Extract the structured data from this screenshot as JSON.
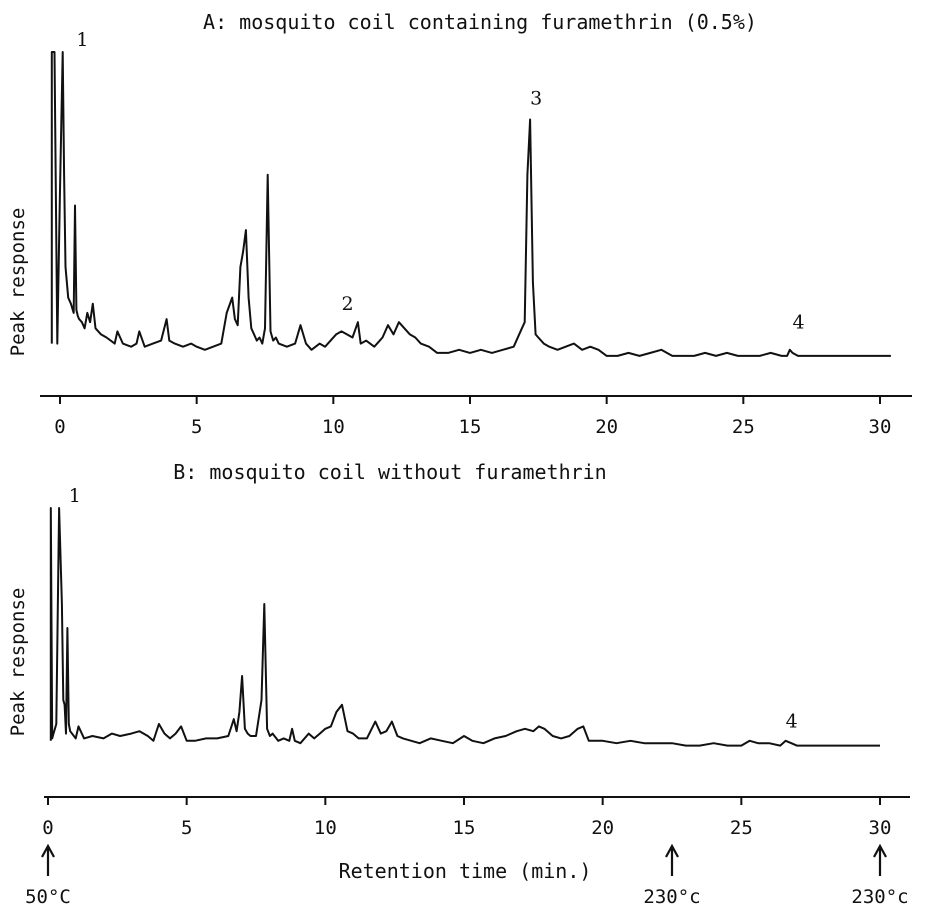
{
  "chart_data": [
    {
      "type": "line",
      "title": "A: mosquito coil containing furamethrin (0.5%)",
      "xlabel": "",
      "ylabel": "Peak response",
      "xlim": [
        0,
        30
      ],
      "x_ticks": [
        "0",
        "5",
        "10",
        "15",
        "20",
        "25",
        "30"
      ],
      "grid": false,
      "line_color": "#111111",
      "series": [
        {
          "x": [
            -0.3,
            -0.3,
            -0.2,
            -0.1,
            0.0,
            0.1,
            0.15,
            0.2,
            0.3,
            0.4,
            0.5,
            0.55,
            0.6,
            0.65,
            0.7,
            0.8,
            0.9,
            1.0,
            1.1,
            1.2,
            1.3,
            1.5,
            1.7,
            2.0,
            2.1,
            2.3,
            2.6,
            2.8,
            2.9,
            3.1,
            3.4,
            3.7,
            3.9,
            4.0,
            4.2,
            4.5,
            4.8,
            5.0,
            5.3,
            5.6,
            5.9,
            6.1,
            6.3,
            6.4,
            6.5,
            6.6,
            6.7,
            6.8,
            6.9,
            7.0,
            7.1,
            7.2,
            7.3,
            7.4,
            7.5,
            7.6,
            7.7,
            7.8,
            7.9,
            8.0,
            8.3,
            8.6,
            8.8,
            9.0,
            9.2,
            9.5,
            9.7,
            9.9,
            10.1,
            10.3,
            10.5,
            10.7,
            10.9,
            11.0,
            11.2,
            11.5,
            11.8,
            12.0,
            12.2,
            12.4,
            12.6,
            12.8,
            13.0,
            13.2,
            13.5,
            13.8,
            14.2,
            14.6,
            15.0,
            15.4,
            15.8,
            16.2,
            16.6,
            16.9,
            17.0,
            17.1,
            17.2,
            17.3,
            17.4,
            17.5,
            17.7,
            17.9,
            18.2,
            18.5,
            18.8,
            19.1,
            19.4,
            19.7,
            20.0,
            20.4,
            20.8,
            21.2,
            21.6,
            22.0,
            22.4,
            22.8,
            23.2,
            23.6,
            24.0,
            24.4,
            24.8,
            25.2,
            25.6,
            26.0,
            26.4,
            26.6,
            26.7,
            26.8,
            27.0,
            27.4,
            27.8,
            28.2,
            28.6,
            29.0,
            29.4,
            29.8,
            30.2,
            30.4
          ],
          "values": [
            5,
            100,
            100,
            5,
            55,
            100,
            60,
            30,
            20,
            18,
            15,
            50,
            16,
            14,
            13,
            12,
            10,
            15,
            12,
            18,
            10,
            8,
            7,
            5,
            9,
            5,
            4,
            5,
            9,
            4,
            5,
            6,
            13,
            6,
            5,
            4,
            5,
            4,
            3,
            4,
            5,
            15,
            20,
            13,
            11,
            30,
            35,
            42,
            20,
            10,
            8,
            6,
            7,
            5,
            10,
            60,
            9,
            6,
            7,
            5,
            4,
            5,
            11,
            5,
            3,
            5,
            4,
            6,
            8,
            9,
            8,
            7,
            12,
            5,
            6,
            4,
            7,
            11,
            8,
            12,
            10,
            8,
            7,
            5,
            4,
            2,
            2,
            3,
            2,
            3,
            2,
            3,
            4,
            10,
            12,
            60,
            78,
            25,
            8,
            7,
            5,
            4,
            3,
            4,
            5,
            3,
            4,
            3,
            1,
            1,
            2,
            1,
            2,
            3,
            1,
            1,
            1,
            2,
            1,
            2,
            1,
            1,
            1,
            2,
            1,
            1,
            3,
            2,
            1,
            1,
            1,
            1,
            1,
            1,
            1,
            1,
            1,
            1
          ]
        }
      ],
      "annotations": [
        {
          "text": "1",
          "x": 0.6,
          "y": 100
        },
        {
          "text": "2",
          "x": 10.3,
          "y": 14
        },
        {
          "text": "3",
          "x": 17.2,
          "y": 81
        },
        {
          "text": "4",
          "x": 26.8,
          "y": 8
        }
      ]
    },
    {
      "type": "line",
      "title": "B: mosquito coil without furamethrin",
      "xlabel": "Retention time (min.)",
      "ylabel": "Peak response",
      "xlim": [
        0,
        30
      ],
      "x_ticks": [
        "0",
        "5",
        "10",
        "15",
        "20",
        "25",
        "30"
      ],
      "grid": false,
      "line_color": "#111111",
      "series": [
        {
          "x": [
            0.1,
            0.1,
            0.15,
            0.2,
            0.3,
            0.4,
            0.5,
            0.55,
            0.6,
            0.65,
            0.7,
            0.75,
            0.8,
            1.0,
            1.1,
            1.3,
            1.6,
            2.0,
            2.3,
            2.6,
            3.0,
            3.3,
            3.6,
            3.8,
            4.0,
            4.2,
            4.4,
            4.6,
            4.8,
            5.0,
            5.3,
            5.7,
            6.1,
            6.5,
            6.7,
            6.8,
            6.9,
            7.0,
            7.1,
            7.2,
            7.3,
            7.5,
            7.7,
            7.8,
            7.9,
            8.0,
            8.1,
            8.3,
            8.5,
            8.7,
            8.8,
            8.9,
            9.1,
            9.4,
            9.6,
            9.8,
            10.0,
            10.2,
            10.4,
            10.6,
            10.8,
            11.0,
            11.2,
            11.5,
            11.8,
            12.0,
            12.2,
            12.4,
            12.6,
            12.8,
            13.1,
            13.4,
            13.8,
            14.2,
            14.6,
            15.0,
            15.3,
            15.7,
            16.1,
            16.5,
            16.9,
            17.2,
            17.5,
            17.7,
            17.9,
            18.2,
            18.5,
            18.8,
            19.1,
            19.3,
            19.5,
            20.0,
            20.5,
            21.0,
            21.5,
            22.0,
            22.5,
            23.0,
            23.5,
            24.0,
            24.5,
            24.8,
            25.0,
            25.3,
            25.6,
            26.0,
            26.4,
            26.6,
            26.8,
            27.0,
            27.5,
            28.0,
            28.5,
            29.0,
            29.5,
            30.0
          ],
          "values": [
            3,
            100,
            4,
            6,
            10,
            100,
            60,
            20,
            18,
            6,
            50,
            10,
            7,
            4,
            9,
            4,
            5,
            4,
            6,
            5,
            6,
            7,
            5,
            3,
            10,
            6,
            4,
            6,
            9,
            3,
            3,
            4,
            4,
            5,
            12,
            7,
            15,
            30,
            8,
            6,
            5,
            5,
            20,
            60,
            8,
            5,
            6,
            3,
            4,
            3,
            8,
            3,
            2,
            6,
            4,
            6,
            8,
            9,
            15,
            18,
            7,
            6,
            4,
            4,
            11,
            6,
            7,
            11,
            5,
            4,
            3,
            2,
            4,
            3,
            2,
            5,
            3,
            2,
            4,
            5,
            7,
            8,
            7,
            9,
            8,
            5,
            4,
            5,
            8,
            9,
            3,
            3,
            2,
            3,
            2,
            2,
            2,
            1,
            1,
            2,
            1,
            1,
            1,
            3,
            2,
            2,
            1,
            3,
            2,
            1,
            1,
            1,
            1,
            1,
            1,
            1
          ]
        }
      ],
      "annotations": [
        {
          "text": "1",
          "x": 0.75,
          "y": 100
        },
        {
          "text": "4",
          "x": 26.6,
          "y": 6
        }
      ],
      "temperature_marks": [
        {
          "x": 0,
          "label": "50°C"
        },
        {
          "x": 22.5,
          "label": "230°c"
        },
        {
          "x": 30,
          "label": "230°c"
        }
      ]
    }
  ]
}
